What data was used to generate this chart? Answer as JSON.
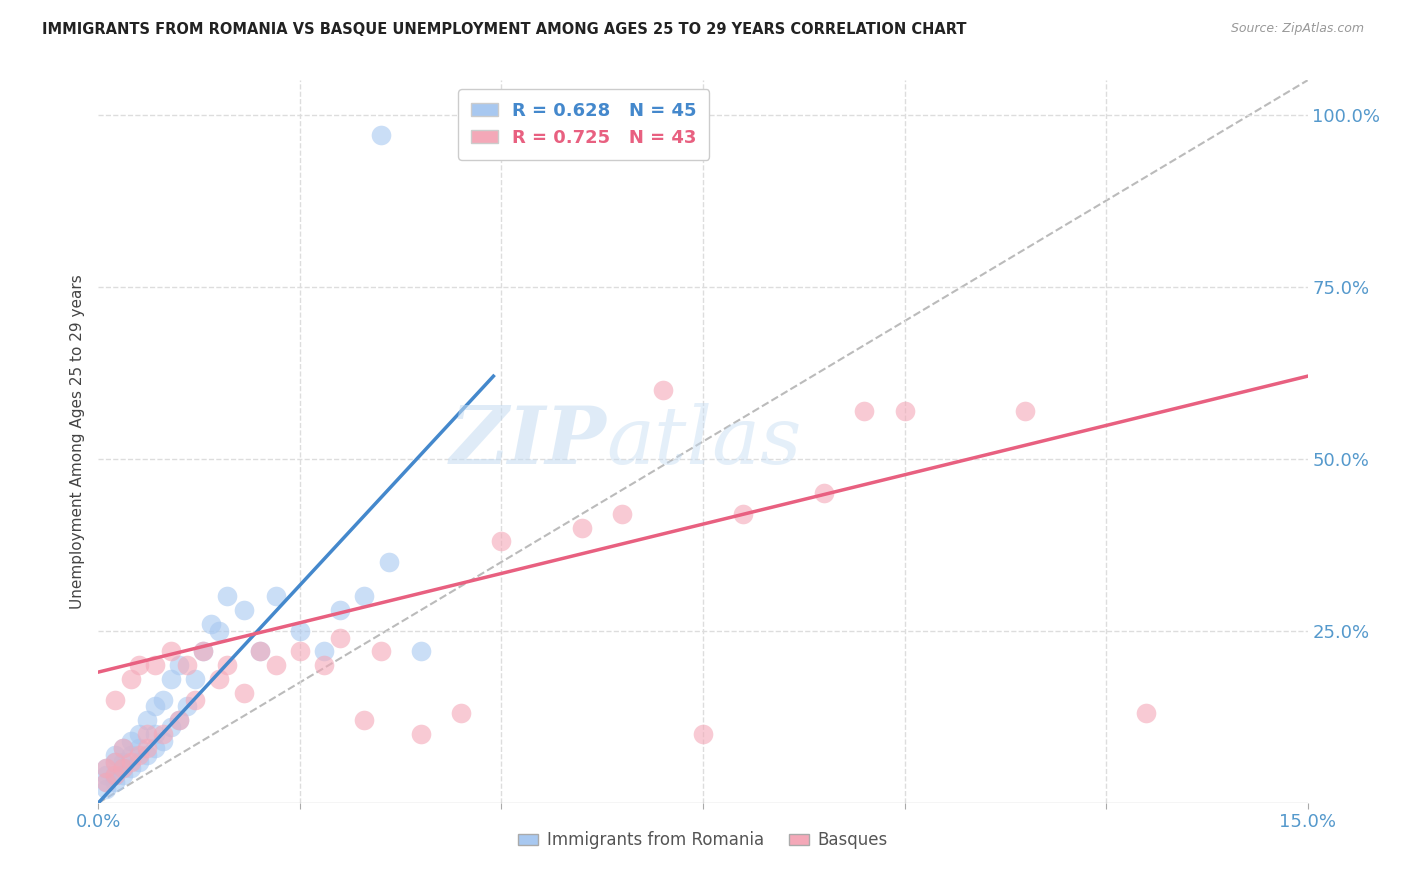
{
  "title": "IMMIGRANTS FROM ROMANIA VS BASQUE UNEMPLOYMENT AMONG AGES 25 TO 29 YEARS CORRELATION CHART",
  "source": "Source: ZipAtlas.com",
  "ylabel": "Unemployment Among Ages 25 to 29 years",
  "xlim": [
    0.0,
    0.15
  ],
  "ylim": [
    0.0,
    1.05
  ],
  "xticks": [
    0.0,
    0.025,
    0.05,
    0.075,
    0.1,
    0.125,
    0.15
  ],
  "xticklabels": [
    "0.0%",
    "",
    "",
    "",
    "",
    "",
    "15.0%"
  ],
  "yticks_right": [
    0.0,
    0.25,
    0.5,
    0.75,
    1.0
  ],
  "yticklabels_right": [
    "",
    "25.0%",
    "50.0%",
    "75.0%",
    "100.0%"
  ],
  "r_blue": 0.628,
  "n_blue": 45,
  "r_pink": 0.725,
  "n_pink": 43,
  "blue_color": "#A8C8F0",
  "pink_color": "#F4A8B8",
  "blue_line_color": "#4488CC",
  "pink_line_color": "#E86080",
  "legend_label_blue": "Immigrants from Romania",
  "legend_label_pink": "Basques",
  "watermark": "ZIPatlas",
  "blue_scatter_x": [
    0.001,
    0.001,
    0.001,
    0.001,
    0.002,
    0.002,
    0.002,
    0.002,
    0.003,
    0.003,
    0.003,
    0.003,
    0.004,
    0.004,
    0.004,
    0.005,
    0.005,
    0.005,
    0.006,
    0.006,
    0.007,
    0.007,
    0.007,
    0.008,
    0.008,
    0.009,
    0.009,
    0.01,
    0.01,
    0.011,
    0.012,
    0.013,
    0.014,
    0.015,
    0.016,
    0.018,
    0.02,
    0.022,
    0.025,
    0.028,
    0.03,
    0.033,
    0.036,
    0.04,
    0.035
  ],
  "blue_scatter_y": [
    0.02,
    0.03,
    0.04,
    0.05,
    0.03,
    0.04,
    0.06,
    0.07,
    0.04,
    0.05,
    0.06,
    0.08,
    0.05,
    0.07,
    0.09,
    0.06,
    0.08,
    0.1,
    0.07,
    0.12,
    0.08,
    0.1,
    0.14,
    0.09,
    0.15,
    0.11,
    0.18,
    0.12,
    0.2,
    0.14,
    0.18,
    0.22,
    0.26,
    0.25,
    0.3,
    0.28,
    0.22,
    0.3,
    0.25,
    0.22,
    0.28,
    0.3,
    0.35,
    0.22,
    0.97
  ],
  "pink_scatter_x": [
    0.001,
    0.001,
    0.002,
    0.002,
    0.002,
    0.003,
    0.003,
    0.004,
    0.004,
    0.005,
    0.005,
    0.006,
    0.006,
    0.007,
    0.008,
    0.009,
    0.01,
    0.011,
    0.012,
    0.013,
    0.015,
    0.016,
    0.018,
    0.02,
    0.022,
    0.025,
    0.028,
    0.03,
    0.033,
    0.035,
    0.04,
    0.045,
    0.05,
    0.06,
    0.065,
    0.07,
    0.075,
    0.08,
    0.09,
    0.095,
    0.1,
    0.115,
    0.13
  ],
  "pink_scatter_y": [
    0.03,
    0.05,
    0.04,
    0.06,
    0.15,
    0.05,
    0.08,
    0.06,
    0.18,
    0.07,
    0.2,
    0.08,
    0.1,
    0.2,
    0.1,
    0.22,
    0.12,
    0.2,
    0.15,
    0.22,
    0.18,
    0.2,
    0.16,
    0.22,
    0.2,
    0.22,
    0.2,
    0.24,
    0.12,
    0.22,
    0.1,
    0.13,
    0.38,
    0.4,
    0.42,
    0.6,
    0.1,
    0.42,
    0.45,
    0.57,
    0.57,
    0.57,
    0.13
  ],
  "blue_line_x": [
    0.0,
    0.049
  ],
  "blue_line_y": [
    0.0,
    0.62
  ],
  "pink_line_x": [
    0.0,
    0.15
  ],
  "pink_line_y": [
    0.19,
    0.62
  ],
  "dash_line_x": [
    0.0,
    0.15
  ],
  "dash_line_y": [
    0.0,
    1.05
  ]
}
